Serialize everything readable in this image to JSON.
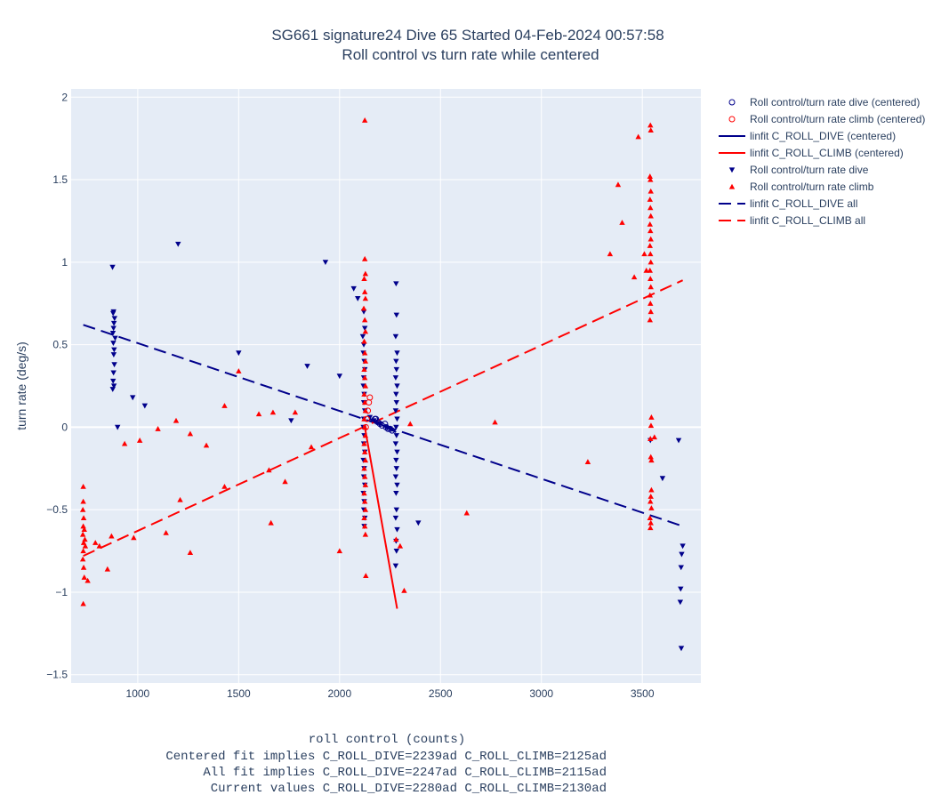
{
  "chart_data": {
    "type": "scatter",
    "title": "SG661 signature24 Dive 65 Started 04-Feb-2024 00:57:58",
    "subtitle": "Roll control vs turn rate while centered",
    "xlabel": "roll control (counts)",
    "ylabel": "turn rate (deg/s)",
    "footnotes": [
      "Centered fit implies C_ROLL_DIVE=2239ad C_ROLL_CLIMB=2125ad",
      "All fit implies C_ROLL_DIVE=2247ad C_ROLL_CLIMB=2115ad",
      "Current values C_ROLL_DIVE=2280ad C_ROLL_CLIMB=2130ad"
    ],
    "xlim": [
      670,
      3790
    ],
    "ylim": [
      -1.55,
      2.05
    ],
    "xticks": [
      1000,
      1500,
      2000,
      2500,
      3000,
      3500
    ],
    "xtick_labels": [
      "1000",
      "1500",
      "2000",
      "2500",
      "3000",
      "3500"
    ],
    "yticks": [
      -1.5,
      -1,
      -0.5,
      0,
      0.5,
      1,
      1.5,
      2
    ],
    "ytick_labels": [
      "−1.5",
      "−1",
      "−0.5",
      "0",
      "0.5",
      "1",
      "1.5",
      "2"
    ],
    "grid": true,
    "legend_position": "right",
    "colors": {
      "dive": "#00008b",
      "climb": "#ff0000",
      "plot_bg": "#e5ecf6",
      "grid": "#ffffff"
    },
    "series": [
      {
        "name": "Roll control/turn rate dive (centered)",
        "kind": "scatter",
        "marker": "circle-open",
        "color": "#00008b",
        "points": [
          [
            2175,
            0.05
          ],
          [
            2190,
            0.03
          ],
          [
            2200,
            0.02
          ],
          [
            2210,
            0.01
          ],
          [
            2225,
            0.02
          ],
          [
            2230,
            0.0
          ],
          [
            2240,
            -0.01
          ],
          [
            2250,
            -0.01
          ],
          [
            2260,
            -0.02
          ],
          [
            2180,
            0.05
          ]
        ]
      },
      {
        "name": "Roll control/turn rate climb (centered)",
        "kind": "scatter",
        "marker": "circle-open",
        "color": "#ff0000",
        "points": [
          [
            2140,
            0.1
          ],
          [
            2145,
            0.15
          ],
          [
            2150,
            0.18
          ],
          [
            2135,
            0.05
          ],
          [
            2130,
            0.0
          ]
        ]
      },
      {
        "name": "linfit C_ROLL_DIVE (centered)",
        "kind": "line",
        "dash": "solid",
        "color": "#00008b",
        "points": [
          [
            2150,
            0.05
          ],
          [
            2280,
            -0.03
          ]
        ]
      },
      {
        "name": "linfit C_ROLL_CLIMB (centered)",
        "kind": "line",
        "dash": "solid",
        "color": "#ff0000",
        "points": [
          [
            2125,
            0.0
          ],
          [
            2285,
            -1.1
          ]
        ]
      },
      {
        "name": "Roll control/turn rate dive",
        "kind": "scatter",
        "marker": "triangle-down",
        "color": "#00008b",
        "points": [
          [
            875,
            0.97
          ],
          [
            880,
            0.7
          ],
          [
            878,
            0.69
          ],
          [
            885,
            0.66
          ],
          [
            882,
            0.63
          ],
          [
            880,
            0.6
          ],
          [
            877,
            0.57
          ],
          [
            888,
            0.54
          ],
          [
            879,
            0.51
          ],
          [
            883,
            0.47
          ],
          [
            881,
            0.44
          ],
          [
            884,
            0.38
          ],
          [
            880,
            0.33
          ],
          [
            878,
            0.28
          ],
          [
            882,
            0.25
          ],
          [
            876,
            0.23
          ],
          [
            900,
            0.0
          ],
          [
            975,
            0.18
          ],
          [
            1035,
            0.13
          ],
          [
            1200,
            1.11
          ],
          [
            1500,
            0.45
          ],
          [
            1760,
            0.04
          ],
          [
            1840,
            0.37
          ],
          [
            1930,
            1.0
          ],
          [
            2000,
            0.31
          ],
          [
            2070,
            0.84
          ],
          [
            2090,
            0.78
          ],
          [
            2150,
            0.06
          ],
          [
            2170,
            0.04
          ],
          [
            2200,
            0.02
          ],
          [
            2230,
            0.0
          ],
          [
            2250,
            -0.01
          ],
          [
            2120,
            0.7
          ],
          [
            2125,
            0.6
          ],
          [
            2115,
            0.55
          ],
          [
            2120,
            0.5
          ],
          [
            2118,
            0.45
          ],
          [
            2122,
            0.4
          ],
          [
            2125,
            0.35
          ],
          [
            2120,
            0.3
          ],
          [
            2118,
            0.25
          ],
          [
            2122,
            0.2
          ],
          [
            2120,
            0.15
          ],
          [
            2125,
            0.1
          ],
          [
            2120,
            0.05
          ],
          [
            2118,
            0.0
          ],
          [
            2122,
            -0.05
          ],
          [
            2120,
            -0.1
          ],
          [
            2125,
            -0.15
          ],
          [
            2118,
            -0.2
          ],
          [
            2122,
            -0.25
          ],
          [
            2120,
            -0.3
          ],
          [
            2125,
            -0.35
          ],
          [
            2118,
            -0.4
          ],
          [
            2122,
            -0.45
          ],
          [
            2120,
            -0.5
          ],
          [
            2125,
            -0.55
          ],
          [
            2122,
            -0.6
          ],
          [
            2280,
            0.87
          ],
          [
            2282,
            0.68
          ],
          [
            2278,
            0.55
          ],
          [
            2285,
            0.45
          ],
          [
            2280,
            0.4
          ],
          [
            2282,
            0.35
          ],
          [
            2278,
            0.3
          ],
          [
            2285,
            0.25
          ],
          [
            2280,
            0.2
          ],
          [
            2282,
            0.15
          ],
          [
            2278,
            0.1
          ],
          [
            2285,
            0.05
          ],
          [
            2280,
            0.0
          ],
          [
            2282,
            -0.05
          ],
          [
            2278,
            -0.1
          ],
          [
            2285,
            -0.15
          ],
          [
            2280,
            -0.2
          ],
          [
            2282,
            -0.25
          ],
          [
            2278,
            -0.3
          ],
          [
            2285,
            -0.35
          ],
          [
            2280,
            -0.4
          ],
          [
            2282,
            -0.5
          ],
          [
            2278,
            -0.55
          ],
          [
            2285,
            -0.62
          ],
          [
            2280,
            -0.69
          ],
          [
            2282,
            -0.75
          ],
          [
            2278,
            -0.84
          ],
          [
            2390,
            -0.58
          ],
          [
            3540,
            -0.08
          ],
          [
            3600,
            -0.31
          ],
          [
            3680,
            -0.08
          ],
          [
            3700,
            -0.72
          ],
          [
            3695,
            -0.77
          ],
          [
            3692,
            -0.85
          ],
          [
            3690,
            -0.98
          ],
          [
            3688,
            -1.06
          ],
          [
            3693,
            -1.34
          ]
        ]
      },
      {
        "name": "Roll control/turn rate climb",
        "kind": "scatter",
        "marker": "triangle-up",
        "color": "#ff0000",
        "points": [
          [
            730,
            -0.36
          ],
          [
            730,
            -0.45
          ],
          [
            728,
            -0.5
          ],
          [
            732,
            -0.55
          ],
          [
            730,
            -0.6
          ],
          [
            728,
            -0.65
          ],
          [
            732,
            -0.7
          ],
          [
            730,
            -0.75
          ],
          [
            728,
            -0.8
          ],
          [
            732,
            -0.85
          ],
          [
            735,
            -0.62
          ],
          [
            738,
            -0.68
          ],
          [
            740,
            -0.72
          ],
          [
            730,
            -1.07
          ],
          [
            735,
            -0.91
          ],
          [
            752,
            -0.93
          ],
          [
            790,
            -0.7
          ],
          [
            810,
            -0.72
          ],
          [
            850,
            -0.86
          ],
          [
            870,
            -0.66
          ],
          [
            935,
            -0.1
          ],
          [
            980,
            -0.67
          ],
          [
            1010,
            -0.08
          ],
          [
            1100,
            -0.01
          ],
          [
            1140,
            -0.64
          ],
          [
            1190,
            0.04
          ],
          [
            1210,
            -0.44
          ],
          [
            1260,
            -0.04
          ],
          [
            1260,
            -0.76
          ],
          [
            1340,
            -0.11
          ],
          [
            1430,
            -0.36
          ],
          [
            1430,
            0.13
          ],
          [
            1500,
            0.34
          ],
          [
            1600,
            0.08
          ],
          [
            1650,
            -0.26
          ],
          [
            1660,
            -0.58
          ],
          [
            1670,
            0.09
          ],
          [
            1730,
            -0.33
          ],
          [
            1780,
            0.09
          ],
          [
            1860,
            -0.12
          ],
          [
            2000,
            -0.75
          ],
          [
            2125,
            1.86
          ],
          [
            2125,
            1.02
          ],
          [
            2128,
            0.93
          ],
          [
            2122,
            0.9
          ],
          [
            2125,
            0.82
          ],
          [
            2128,
            0.78
          ],
          [
            2120,
            0.72
          ],
          [
            2125,
            0.65
          ],
          [
            2128,
            0.58
          ],
          [
            2122,
            0.52
          ],
          [
            2125,
            0.45
          ],
          [
            2128,
            0.4
          ],
          [
            2122,
            0.35
          ],
          [
            2125,
            0.3
          ],
          [
            2128,
            0.25
          ],
          [
            2122,
            0.2
          ],
          [
            2125,
            0.15
          ],
          [
            2128,
            0.1
          ],
          [
            2122,
            0.05
          ],
          [
            2125,
            0.0
          ],
          [
            2128,
            -0.05
          ],
          [
            2122,
            -0.1
          ],
          [
            2125,
            -0.15
          ],
          [
            2128,
            -0.2
          ],
          [
            2122,
            -0.25
          ],
          [
            2125,
            -0.3
          ],
          [
            2128,
            -0.35
          ],
          [
            2122,
            -0.4
          ],
          [
            2125,
            -0.45
          ],
          [
            2128,
            -0.5
          ],
          [
            2122,
            -0.55
          ],
          [
            2125,
            -0.6
          ],
          [
            2128,
            -0.65
          ],
          [
            2130,
            -0.9
          ],
          [
            2280,
            -0.68
          ],
          [
            2300,
            -0.72
          ],
          [
            2320,
            -0.99
          ],
          [
            2350,
            0.02
          ],
          [
            2630,
            -0.52
          ],
          [
            2770,
            0.03
          ],
          [
            3230,
            -0.21
          ],
          [
            3340,
            1.05
          ],
          [
            3380,
            1.47
          ],
          [
            3400,
            1.24
          ],
          [
            3460,
            0.91
          ],
          [
            3480,
            1.76
          ],
          [
            3510,
            1.05
          ],
          [
            3520,
            0.95
          ],
          [
            3540,
            1.83
          ],
          [
            3542,
            1.8
          ],
          [
            3538,
            1.52
          ],
          [
            3540,
            1.5
          ],
          [
            3542,
            1.43
          ],
          [
            3538,
            1.38
          ],
          [
            3540,
            1.33
          ],
          [
            3542,
            1.28
          ],
          [
            3538,
            1.23
          ],
          [
            3540,
            1.19
          ],
          [
            3542,
            1.14
          ],
          [
            3538,
            1.1
          ],
          [
            3540,
            1.05
          ],
          [
            3542,
            1.0
          ],
          [
            3538,
            0.95
          ],
          [
            3540,
            0.9
          ],
          [
            3542,
            0.85
          ],
          [
            3538,
            0.8
          ],
          [
            3540,
            0.75
          ],
          [
            3542,
            0.7
          ],
          [
            3538,
            0.65
          ],
          [
            3545,
            0.06
          ],
          [
            3543,
            0.01
          ],
          [
            3540,
            -0.07
          ],
          [
            3545,
            -0.2
          ],
          [
            3542,
            -0.18
          ],
          [
            3545,
            -0.38
          ],
          [
            3542,
            -0.42
          ],
          [
            3540,
            -0.45
          ],
          [
            3545,
            -0.49
          ],
          [
            3538,
            -0.55
          ],
          [
            3542,
            -0.58
          ],
          [
            3540,
            -0.61
          ],
          [
            3560,
            -0.06
          ]
        ]
      },
      {
        "name": "linfit C_ROLL_DIVE all",
        "kind": "line",
        "dash": "dash",
        "color": "#00008b",
        "points": [
          [
            730,
            0.62
          ],
          [
            3700,
            -0.6
          ]
        ]
      },
      {
        "name": "linfit C_ROLL_CLIMB all",
        "kind": "line",
        "dash": "dash",
        "color": "#ff0000",
        "points": [
          [
            730,
            -0.78
          ],
          [
            3700,
            0.89
          ]
        ]
      }
    ]
  }
}
